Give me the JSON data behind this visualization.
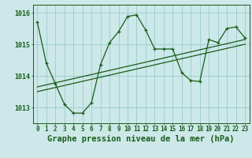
{
  "title": "Graphe pression niveau de la mer (hPa)",
  "x_values": [
    0,
    1,
    2,
    3,
    4,
    5,
    6,
    7,
    8,
    9,
    10,
    11,
    12,
    13,
    14,
    15,
    16,
    17,
    18,
    19,
    20,
    21,
    22,
    23
  ],
  "x_labels": [
    "0",
    "1",
    "2",
    "3",
    "4",
    "5",
    "6",
    "7",
    "8",
    "9",
    "10",
    "11",
    "12",
    "13",
    "14",
    "15",
    "16",
    "17",
    "18",
    "19",
    "20",
    "21",
    "22",
    "23"
  ],
  "main_y": [
    1015.7,
    1014.4,
    1013.75,
    1013.1,
    1012.82,
    1012.82,
    1013.15,
    1014.35,
    1015.05,
    1015.4,
    1015.88,
    1015.93,
    1015.45,
    1014.85,
    1014.85,
    1014.85,
    1014.1,
    1013.85,
    1013.82,
    1015.15,
    1015.05,
    1015.5,
    1015.55,
    1015.2
  ],
  "trend1_x": [
    0,
    23
  ],
  "trend1_y": [
    1013.65,
    1015.15
  ],
  "trend2_x": [
    0,
    23
  ],
  "trend2_y": [
    1013.5,
    1015.0
  ],
  "ylim": [
    1012.5,
    1016.25
  ],
  "yticks": [
    1013,
    1014,
    1015,
    1016
  ],
  "xlim": [
    -0.5,
    23.5
  ],
  "bg_color": "#cce8e8",
  "grid_color": "#99cccc",
  "line_color": "#1a5c1a",
  "title_fontsize": 7.5,
  "tick_fontsize": 5.5,
  "ylabel_fontsize": 6.0
}
